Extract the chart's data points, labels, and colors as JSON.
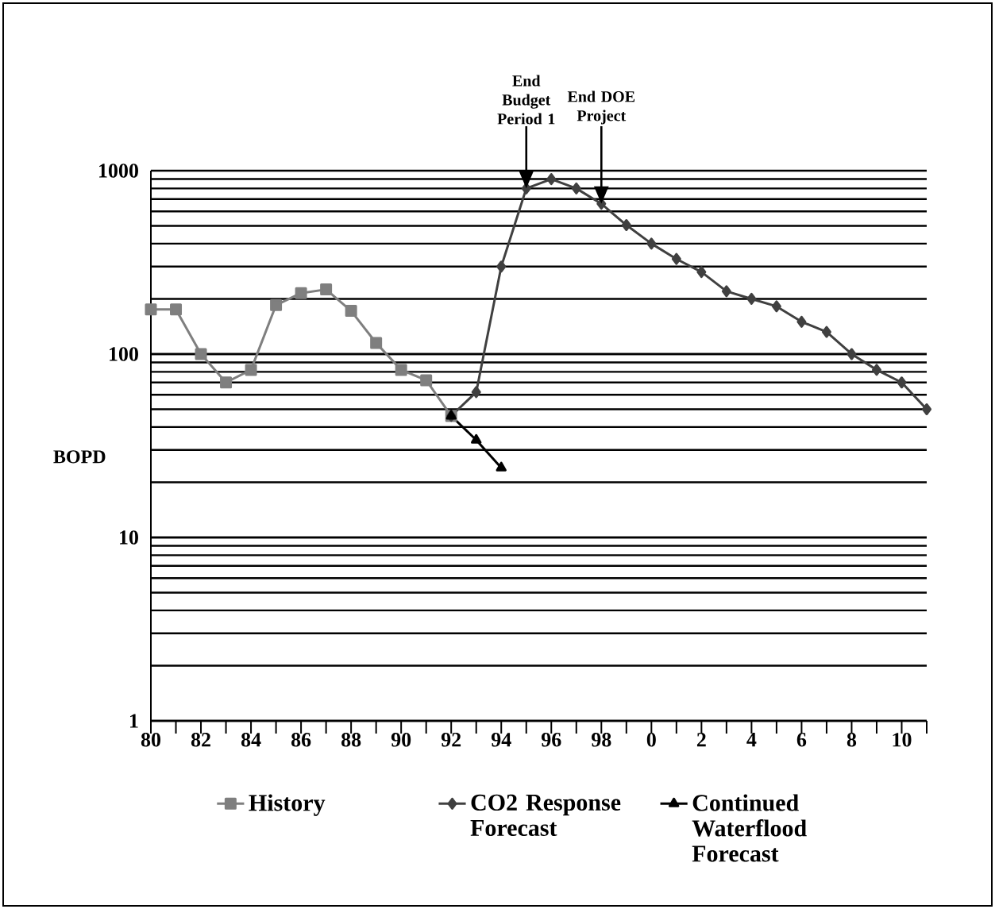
{
  "chart_data": {
    "type": "line",
    "ylabel": "BOPD",
    "log": "y",
    "grid": "y",
    "legend": "bottom",
    "categories": [
      "80",
      null,
      "82",
      null,
      "84",
      null,
      "86",
      null,
      "88",
      null,
      "90",
      null,
      "92",
      null,
      "94",
      null,
      "96",
      null,
      "98",
      null,
      "0",
      null,
      "2",
      null,
      "4",
      null,
      "6",
      null,
      "8",
      null,
      "10",
      null
    ],
    "ylim": [
      1,
      1000
    ],
    "yticks": [
      1,
      10,
      100,
      1000
    ],
    "annotations": [
      "End Budget Period 1",
      "End DOE Project"
    ],
    "series": [
      {
        "name": "History",
        "color": "#7f7f7f",
        "marker": "square",
        "values": [
          175,
          175,
          100,
          70,
          82,
          185,
          215,
          225,
          172,
          115,
          82,
          72,
          46,
          null,
          null,
          null,
          null,
          null,
          null,
          null,
          null,
          null,
          null,
          null,
          null,
          null,
          null,
          null,
          null,
          null,
          null,
          null
        ]
      },
      {
        "name": "CO2 Response Forecast",
        "color": "#404040",
        "marker": "diamond",
        "values": [
          null,
          null,
          null,
          null,
          null,
          null,
          null,
          null,
          null,
          null,
          null,
          null,
          46,
          62,
          300,
          800,
          900,
          800,
          660,
          505,
          400,
          330,
          280,
          220,
          200,
          182,
          150,
          132,
          100,
          82,
          70,
          50
        ]
      },
      {
        "name": "Continued Waterflood Forecast",
        "color": "#000000",
        "marker": "triangle",
        "values": [
          null,
          null,
          null,
          null,
          null,
          null,
          null,
          null,
          null,
          null,
          null,
          null,
          46,
          34,
          24,
          null,
          null,
          null,
          null,
          null,
          null,
          null,
          null,
          null,
          null,
          null,
          null,
          null,
          null,
          null,
          null,
          null
        ]
      }
    ]
  }
}
